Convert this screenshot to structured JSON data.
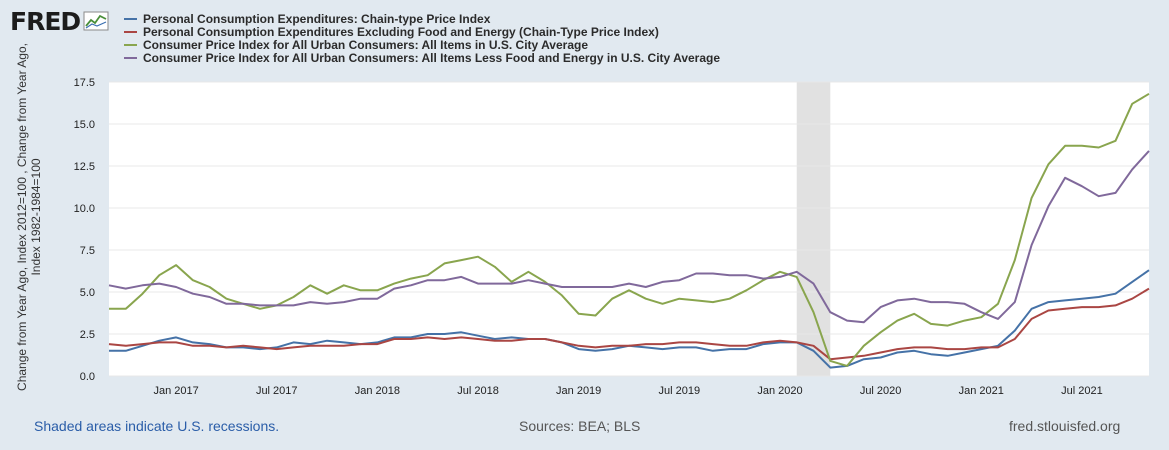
{
  "header": {
    "logo_text": "FRED",
    "logo_icon": "line-chart-icon"
  },
  "colors": {
    "background": "#e1e9f0",
    "plot_background": "#ffffff",
    "grid": "#e8e8e8",
    "recession": "#e1e1e1"
  },
  "chart_data": {
    "type": "line",
    "x": [
      "2016-09",
      "2016-10",
      "2016-11",
      "2016-12",
      "2017-01",
      "2017-02",
      "2017-03",
      "2017-04",
      "2017-05",
      "2017-06",
      "2017-07",
      "2017-08",
      "2017-09",
      "2017-10",
      "2017-11",
      "2017-12",
      "2018-01",
      "2018-02",
      "2018-03",
      "2018-04",
      "2018-05",
      "2018-06",
      "2018-07",
      "2018-08",
      "2018-09",
      "2018-10",
      "2018-11",
      "2018-12",
      "2019-01",
      "2019-02",
      "2019-03",
      "2019-04",
      "2019-05",
      "2019-06",
      "2019-07",
      "2019-08",
      "2019-09",
      "2019-10",
      "2019-11",
      "2019-12",
      "2020-01",
      "2020-02",
      "2020-03",
      "2020-04",
      "2020-05",
      "2020-06",
      "2020-07",
      "2020-08",
      "2020-09",
      "2020-10",
      "2020-11",
      "2020-12",
      "2021-01",
      "2021-02",
      "2021-03",
      "2021-04",
      "2021-05",
      "2021-06",
      "2021-07",
      "2021-08",
      "2021-09",
      "2021-10",
      "2021-11"
    ],
    "x_ticks": [
      {
        "x": "2017-01",
        "label": "Jan 2017"
      },
      {
        "x": "2017-07",
        "label": "Jul 2017"
      },
      {
        "x": "2018-01",
        "label": "Jan 2018"
      },
      {
        "x": "2018-07",
        "label": "Jul 2018"
      },
      {
        "x": "2019-01",
        "label": "Jan 2019"
      },
      {
        "x": "2019-07",
        "label": "Jul 2019"
      },
      {
        "x": "2020-01",
        "label": "Jan 2020"
      },
      {
        "x": "2020-07",
        "label": "Jul 2020"
      },
      {
        "x": "2021-01",
        "label": "Jan 2021"
      },
      {
        "x": "2021-07",
        "label": "Jul 2021"
      }
    ],
    "xlim": [
      "2016-09",
      "2021-11"
    ],
    "ylim": [
      0,
      17.5
    ],
    "y_ticks": [
      "0.0",
      "2.5",
      "5.0",
      "7.5",
      "10.0",
      "12.5",
      "15.0",
      "17.5"
    ],
    "ylabel": "Change from Year Ago, Index 2012=100 , Change from Year Ago, Index 1982-1984=100",
    "grid": true,
    "legend_position": "top",
    "recessions": [
      {
        "start": "2020-02",
        "end": "2020-04"
      }
    ],
    "series": [
      {
        "name": "Personal Consumption Expenditures: Chain-type Price Index",
        "color": "#4572a7",
        "values": [
          1.5,
          1.5,
          1.8,
          2.1,
          2.3,
          2.0,
          1.9,
          1.7,
          1.7,
          1.6,
          1.7,
          2.0,
          1.9,
          2.1,
          2.0,
          1.9,
          2.0,
          2.3,
          2.3,
          2.5,
          2.5,
          2.6,
          2.4,
          2.2,
          2.3,
          2.2,
          2.2,
          2.0,
          1.6,
          1.5,
          1.6,
          1.8,
          1.7,
          1.6,
          1.7,
          1.7,
          1.5,
          1.6,
          1.6,
          1.9,
          2.0,
          2.0,
          1.5,
          0.5,
          0.6,
          1.0,
          1.1,
          1.4,
          1.5,
          1.3,
          1.2,
          1.4,
          1.6,
          1.8,
          2.7,
          4.0,
          4.4,
          4.5,
          4.6,
          4.7,
          4.9,
          5.6,
          6.3
        ]
      },
      {
        "name": "Personal Consumption Expenditures Excluding Food and Energy (Chain-Type Price Index)",
        "color": "#aa4643",
        "values": [
          1.9,
          1.8,
          1.9,
          2.0,
          2.0,
          1.8,
          1.8,
          1.7,
          1.8,
          1.7,
          1.6,
          1.7,
          1.8,
          1.8,
          1.8,
          1.9,
          1.9,
          2.2,
          2.2,
          2.3,
          2.2,
          2.3,
          2.2,
          2.1,
          2.1,
          2.2,
          2.2,
          2.0,
          1.8,
          1.7,
          1.8,
          1.8,
          1.9,
          1.9,
          2.0,
          2.0,
          1.9,
          1.8,
          1.8,
          2.0,
          2.1,
          2.0,
          1.8,
          1.0,
          1.1,
          1.2,
          1.4,
          1.6,
          1.7,
          1.7,
          1.6,
          1.6,
          1.7,
          1.7,
          2.2,
          3.4,
          3.9,
          4.0,
          4.1,
          4.1,
          4.2,
          4.6,
          5.2
        ]
      },
      {
        "name": "Consumer Price Index for All Urban Consumers: All Items in U.S. City Average",
        "color": "#89a54e",
        "values": [
          4.0,
          4.0,
          4.9,
          6.0,
          6.6,
          5.7,
          5.3,
          4.6,
          4.3,
          4.0,
          4.2,
          4.7,
          5.4,
          4.9,
          5.4,
          5.1,
          5.1,
          5.5,
          5.8,
          6.0,
          6.7,
          6.9,
          7.1,
          6.5,
          5.6,
          6.2,
          5.6,
          4.8,
          3.7,
          3.6,
          4.6,
          5.1,
          4.6,
          4.3,
          4.6,
          4.5,
          4.4,
          4.6,
          5.1,
          5.7,
          6.2,
          5.9,
          3.8,
          0.9,
          0.6,
          1.8,
          2.6,
          3.3,
          3.7,
          3.1,
          3.0,
          3.3,
          3.5,
          4.3,
          6.9,
          10.6,
          12.6,
          13.7,
          13.7,
          13.6,
          14.0,
          16.2,
          16.8
        ]
      },
      {
        "name": "Consumer Price Index for All Urban Consumers: All Items Less Food and Energy in U.S. City Average",
        "color": "#80699b",
        "values": [
          5.4,
          5.2,
          5.4,
          5.5,
          5.3,
          4.9,
          4.7,
          4.3,
          4.3,
          4.2,
          4.2,
          4.2,
          4.4,
          4.3,
          4.4,
          4.6,
          4.6,
          5.2,
          5.4,
          5.7,
          5.7,
          5.9,
          5.5,
          5.5,
          5.5,
          5.7,
          5.5,
          5.3,
          5.3,
          5.3,
          5.3,
          5.5,
          5.3,
          5.6,
          5.7,
          6.1,
          6.1,
          6.0,
          6.0,
          5.8,
          5.9,
          6.2,
          5.5,
          3.8,
          3.3,
          3.2,
          4.1,
          4.5,
          4.6,
          4.4,
          4.4,
          4.3,
          3.8,
          3.4,
          4.4,
          7.8,
          10.1,
          11.8,
          11.3,
          10.7,
          10.9,
          12.3,
          13.4
        ]
      }
    ]
  },
  "footer": {
    "recessions_note": "Shaded areas indicate U.S. recessions.",
    "sources": "Sources: BEA; BLS",
    "site": "fred.stlouisfed.org"
  }
}
